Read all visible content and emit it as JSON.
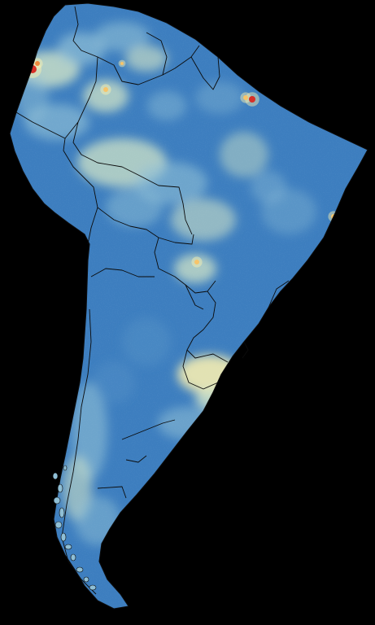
{
  "map": {
    "background_color": "#000000",
    "base_color": "#3d7ebf",
    "border_color": "#0b0b0b",
    "palette": [
      "#3d7ebf",
      "#5b96c8",
      "#8fbfd6",
      "#d8e9c8",
      "#fff3b0",
      "#f7c46a",
      "#f08a3e",
      "#d73027"
    ],
    "region": "South America",
    "visible_text": []
  }
}
